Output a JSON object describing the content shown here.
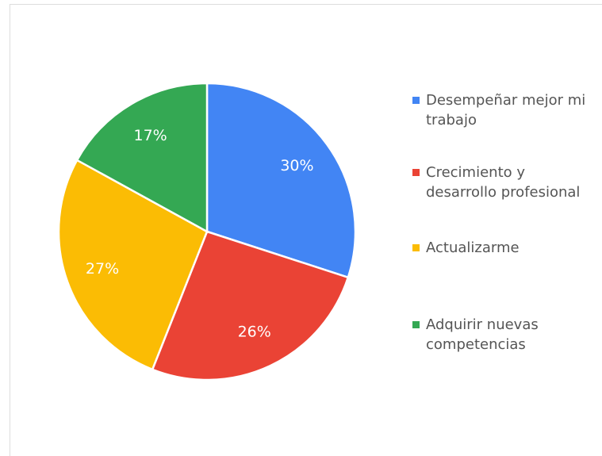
{
  "chart_data": {
    "type": "pie",
    "categories": [
      "Desempeñar mejor mi trabajo",
      "Crecimiento y desarrollo profesional",
      "Actualizarme",
      "Adquirir nuevas competencias"
    ],
    "values": [
      30,
      26,
      27,
      17
    ],
    "value_labels": [
      "30%",
      "26%",
      "27%",
      "17%"
    ],
    "colors": [
      "#4285f4",
      "#ea4335",
      "#fbbc04",
      "#34a853"
    ],
    "legend": "right"
  }
}
